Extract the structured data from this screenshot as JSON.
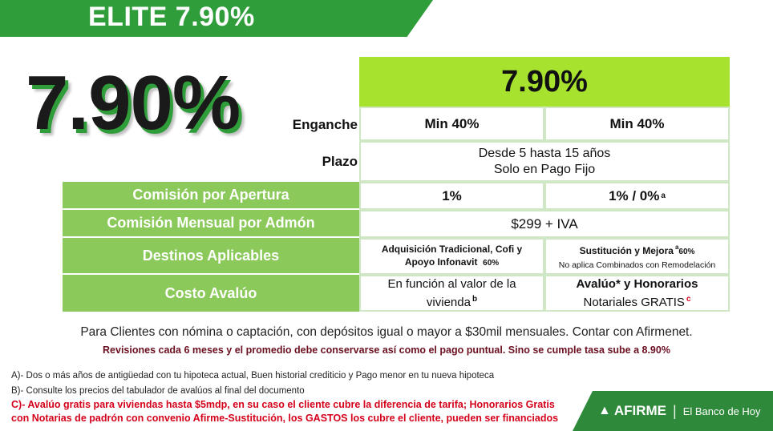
{
  "banner": {
    "title": "ELITE 7.90%"
  },
  "big_rate": "7.90%",
  "table": {
    "header_rate": "7.90%",
    "enganche": {
      "label": "Enganche",
      "col1": "Min 40%",
      "col2": "Min 40%"
    },
    "plazo": {
      "label": "Plazo",
      "line1": "Desde 5 hasta 15 años",
      "line2": "Solo en Pago Fijo"
    },
    "comision_apertura": {
      "label": "Comisión por Apertura",
      "col1": "1%",
      "col2": "1% / 0%",
      "col2_sup": "a"
    },
    "comision_mensual": {
      "label": "Comisión Mensual por Admón",
      "value": "$299 + IVA"
    },
    "destinos": {
      "label": "Destinos Aplicables",
      "col1_line1": "Adquisición Tradicional, Cofi y",
      "col1_line2": "Apoyo Infonavit",
      "col1_pct": "60%",
      "col2_line1": "Sustitución y Mejora",
      "col2_sup": "a",
      "col2_pct": "60%",
      "col2_line2": "No aplica Combinados con Remodelación"
    },
    "avaluo": {
      "label": "Costo Avalúo",
      "col1_line1": "En función al valor de la",
      "col1_line2": "vivienda",
      "col1_sup": "b",
      "col2_line1": "Avalúo* y Honorarios",
      "col2_line2": "Notariales GRATIS",
      "col2_sup": "c"
    }
  },
  "footer": {
    "line1": "Para Clientes con nómina o captación, con depósitos igual o mayor a $30mil mensuales. Contar con Afirmenet.",
    "line2": "Revisiones  cada 6 meses y el promedio debe conservarse así como el pago puntual. Sino se cumple tasa sube a 8.90%"
  },
  "notes": {
    "a": "A)- Dos o más años de antigüedad con tu hipoteca actual, Buen historial crediticio y Pago menor en tu nueva hipoteca",
    "b": "B)- Consulte los precios del tabulador de avalúos al final del documento",
    "c1": "C)- Avalúo gratis para viviendas hasta $5mdp, en su caso el cliente cubre la diferencia de tarifa; Honorarios Gratis",
    "c2": " con Notarias de padrón con convenio Afirme-Sustitución, los GASTOS los cubre el cliente, pueden ser financiados"
  },
  "brand": {
    "name": "AFIRME",
    "separator": "|",
    "tagline": "El Banco de Hoy",
    "icon": "afirme-logo-icon"
  }
}
